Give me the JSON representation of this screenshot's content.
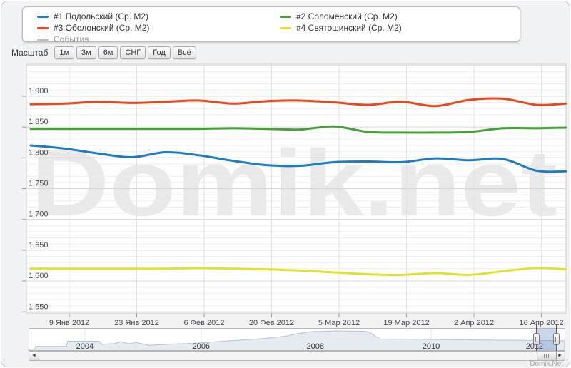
{
  "legend": {
    "items": [
      {
        "label": "#1 Подольский (Ср. М2)",
        "color": "#1e7cc2",
        "muted": false
      },
      {
        "label": "#2 Соломенский (Ср. М2)",
        "color": "#44a335",
        "muted": false
      },
      {
        "label": "#3 Оболонский (Ср. М2)",
        "color": "#e8481c",
        "muted": false
      },
      {
        "label": "#4 Святошинский (Ср. М2)",
        "color": "#e0e32d",
        "muted": false
      },
      {
        "label": "События",
        "color": "#bcbcbc",
        "muted": true
      }
    ]
  },
  "toolbar": {
    "label": "Масштаб",
    "buttons": [
      "1м",
      "3м",
      "6м",
      "СНГ",
      "Год",
      "Всё"
    ]
  },
  "watermark": "Domik.net",
  "credits": "Domik.Net",
  "icons": {
    "scroll_left": "◄",
    "scroll_right": "►"
  },
  "chart_data": {
    "type": "line",
    "title": "",
    "xlabel": "",
    "ylabel": "",
    "grid": "on",
    "legend_position": "top",
    "ylim": [
      1548,
      1952
    ],
    "y_major_tick_labels": [
      "1,550",
      "1,600",
      "1,650",
      "1,700",
      "1,750",
      "1,800",
      "1,850",
      "1,900"
    ],
    "y_major_ticks": [
      1550,
      1600,
      1650,
      1700,
      1750,
      1800,
      1850,
      1900
    ],
    "y_minor_step": 10,
    "x_tick_labels": [
      "9 Янв 2012",
      "23 Янв 2012",
      "6 Фев 2012",
      "20 Фев 2012",
      "5 Мар 2012",
      "19 Мар 2012",
      "2 Апр 2012",
      "16 Апр 2012"
    ],
    "x_range": [
      "1 Янв 2012",
      "22 Апр 2012"
    ],
    "x_points": "weekly",
    "series": [
      {
        "name": "#1 Подольский (Ср. М2)",
        "color": "#1e7cc2",
        "values": [
          1820,
          1815,
          1807,
          1801,
          1809,
          1804,
          1795,
          1788,
          1787,
          1793,
          1794,
          1793,
          1799,
          1796,
          1798,
          1779,
          1778
        ]
      },
      {
        "name": "#2 Соломенский (Ср. М2)",
        "color": "#44a335",
        "values": [
          1847,
          1847,
          1847,
          1847,
          1847,
          1847,
          1848,
          1847,
          1846,
          1851,
          1842,
          1841,
          1841,
          1842,
          1848,
          1848,
          1849
        ]
      },
      {
        "name": "#3 Оболонский (Ср. М2)",
        "color": "#e8481c",
        "values": [
          1887,
          1888,
          1891,
          1889,
          1891,
          1893,
          1888,
          1892,
          1893,
          1890,
          1886,
          1891,
          1884,
          1894,
          1896,
          1886,
          1888
        ]
      },
      {
        "name": "#4 Святошинский (Ср. М2)",
        "color": "#e0e32d",
        "values": [
          1620,
          1620,
          1620,
          1620,
          1620,
          1621,
          1620,
          1619,
          1617,
          1614,
          1611,
          1610,
          1613,
          1610,
          1616,
          1621,
          1619
        ]
      }
    ]
  },
  "navigator": {
    "years": [
      {
        "label": "2004",
        "x": 0.105
      },
      {
        "label": "2006",
        "x": 0.322
      },
      {
        "label": "2008",
        "x": 0.535
      },
      {
        "label": "2010",
        "x": 0.751
      },
      {
        "label": "2012",
        "x": 0.944
      }
    ],
    "area": [
      [
        0.0,
        0.07
      ],
      [
        0.012,
        0.07
      ],
      [
        0.014,
        0.2
      ],
      [
        0.071,
        0.2
      ],
      [
        0.073,
        0.45
      ],
      [
        0.132,
        0.45
      ],
      [
        0.136,
        0.3
      ],
      [
        0.16,
        0.33
      ],
      [
        0.172,
        0.42
      ],
      [
        0.186,
        0.33
      ],
      [
        0.202,
        0.38
      ],
      [
        0.225,
        0.25
      ],
      [
        0.26,
        0.3
      ],
      [
        0.309,
        0.35
      ],
      [
        0.349,
        0.42
      ],
      [
        0.393,
        0.5
      ],
      [
        0.438,
        0.58
      ],
      [
        0.482,
        0.7
      ],
      [
        0.502,
        0.82
      ],
      [
        0.526,
        0.91
      ],
      [
        0.575,
        0.95
      ],
      [
        0.629,
        0.93
      ],
      [
        0.638,
        0.85
      ],
      [
        0.655,
        0.56
      ],
      [
        0.704,
        0.55
      ],
      [
        0.792,
        0.52
      ],
      [
        0.881,
        0.5
      ],
      [
        0.931,
        0.49
      ],
      [
        1.0,
        0.47
      ]
    ],
    "selection": {
      "from": 0.947,
      "to": 0.984
    }
  }
}
